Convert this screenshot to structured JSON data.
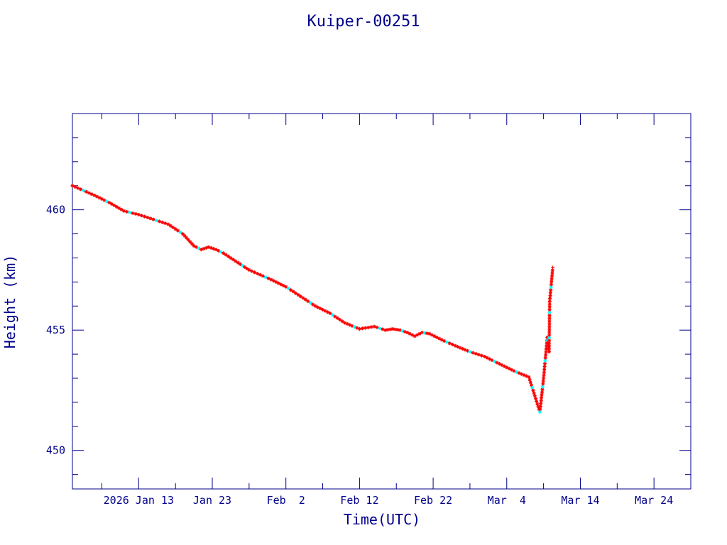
{
  "chart_data": {
    "type": "line",
    "title": "Kuiper-00251",
    "xlabel": "Time(UTC)",
    "ylabel": "Height (km)",
    "x_tick_labels": [
      "2026 Jan 13",
      "Jan 23",
      "Feb  2",
      "Feb 12",
      "Feb 22",
      "Mar  4",
      "Mar 14",
      "Mar 24"
    ],
    "x_tick_values": [
      "2026-01-13",
      "2026-01-23",
      "2026-02-02",
      "2026-02-12",
      "2026-02-22",
      "2026-03-04",
      "2026-03-14",
      "2026-03-24"
    ],
    "y_tick_labels": [
      "450",
      "455",
      "460"
    ],
    "y_tick_values": [
      450,
      455,
      460
    ],
    "xlim": [
      "2026-01-04",
      "2026-03-29"
    ],
    "ylim": [
      448.4,
      464.0
    ],
    "grid": false,
    "colors": {
      "axes": "#00008b",
      "line": "#00008b",
      "marker_primary": "#ff0000",
      "marker_secondary": "#00ffff"
    },
    "series": [
      {
        "x": [
          "2026-01-04T00:00",
          "2026-01-05T12:00",
          "2026-01-07T00:00",
          "2026-01-09T00:00",
          "2026-01-11T00:00",
          "2026-01-13T00:00",
          "2026-01-15T00:00",
          "2026-01-17T00:00",
          "2026-01-19T00:00",
          "2026-01-20T12:00",
          "2026-01-21T12:00",
          "2026-01-22T12:00",
          "2026-01-23T12:00",
          "2026-01-24T12:00",
          "2026-01-25T12:00",
          "2026-01-26T12:00",
          "2026-01-28T00:00",
          "2026-01-29T12:00",
          "2026-01-31T00:00",
          "2026-02-02T00:00",
          "2026-02-04T00:00",
          "2026-02-06T00:00",
          "2026-02-08T00:00",
          "2026-02-10T00:00",
          "2026-02-12T00:00",
          "2026-02-14T00:00",
          "2026-02-15T12:00",
          "2026-02-16T12:00",
          "2026-02-17T12:00",
          "2026-02-18T12:00",
          "2026-02-19T12:00",
          "2026-02-20T12:00",
          "2026-02-21T12:00",
          "2026-02-22T12:00",
          "2026-02-23T12:00",
          "2026-02-25T00:00",
          "2026-02-27T00:00",
          "2026-03-01T00:00",
          "2026-03-03T00:00",
          "2026-03-05T00:00",
          "2026-03-07T00:00",
          "2026-03-08T12:00",
          "2026-03-09T00:00",
          "2026-03-09T12:00",
          "2026-03-09T18:00",
          "2026-03-09T20:00",
          "2026-03-10T06:00"
        ],
        "y": [
          461.0,
          460.8,
          460.6,
          460.3,
          459.95,
          459.8,
          459.6,
          459.4,
          459.0,
          458.5,
          458.35,
          458.45,
          458.35,
          458.2,
          458.0,
          457.8,
          457.5,
          457.3,
          457.1,
          456.8,
          456.4,
          456.0,
          455.7,
          455.3,
          455.05,
          455.15,
          455.0,
          455.05,
          455.0,
          454.9,
          454.75,
          454.9,
          454.85,
          454.7,
          454.55,
          454.35,
          454.1,
          453.9,
          453.6,
          453.3,
          453.05,
          451.6,
          453.0,
          454.7,
          454.1,
          456.2,
          457.6
        ]
      }
    ]
  }
}
